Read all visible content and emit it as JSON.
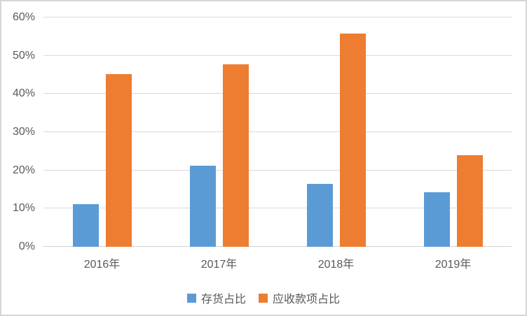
{
  "chart_data": {
    "type": "bar",
    "title": "",
    "categories": [
      "2016年",
      "2017年",
      "2018年",
      "2019年"
    ],
    "series": [
      {
        "name": "存货占比",
        "color": "#5B9BD5",
        "values": [
          11.2,
          21.2,
          16.4,
          14.3
        ]
      },
      {
        "name": "应收款项占比",
        "color": "#ED7D31",
        "values": [
          45.2,
          47.8,
          55.8,
          23.9
        ]
      }
    ],
    "xlabel": "",
    "ylabel": "",
    "ylim": [
      0,
      60
    ],
    "y_ticks": [
      {
        "value": 0,
        "label": "0%"
      },
      {
        "value": 10,
        "label": "10%"
      },
      {
        "value": 20,
        "label": "20%"
      },
      {
        "value": 30,
        "label": "30%"
      },
      {
        "value": 40,
        "label": "40%"
      },
      {
        "value": 50,
        "label": "50%"
      },
      {
        "value": 60,
        "label": "60%"
      }
    ],
    "grid": true,
    "legend_position": "bottom",
    "text_color": "#595959",
    "gridline_color": "#D9D9D9",
    "border_color": "#D6D6D6",
    "background_color": "#FFFFFF"
  }
}
